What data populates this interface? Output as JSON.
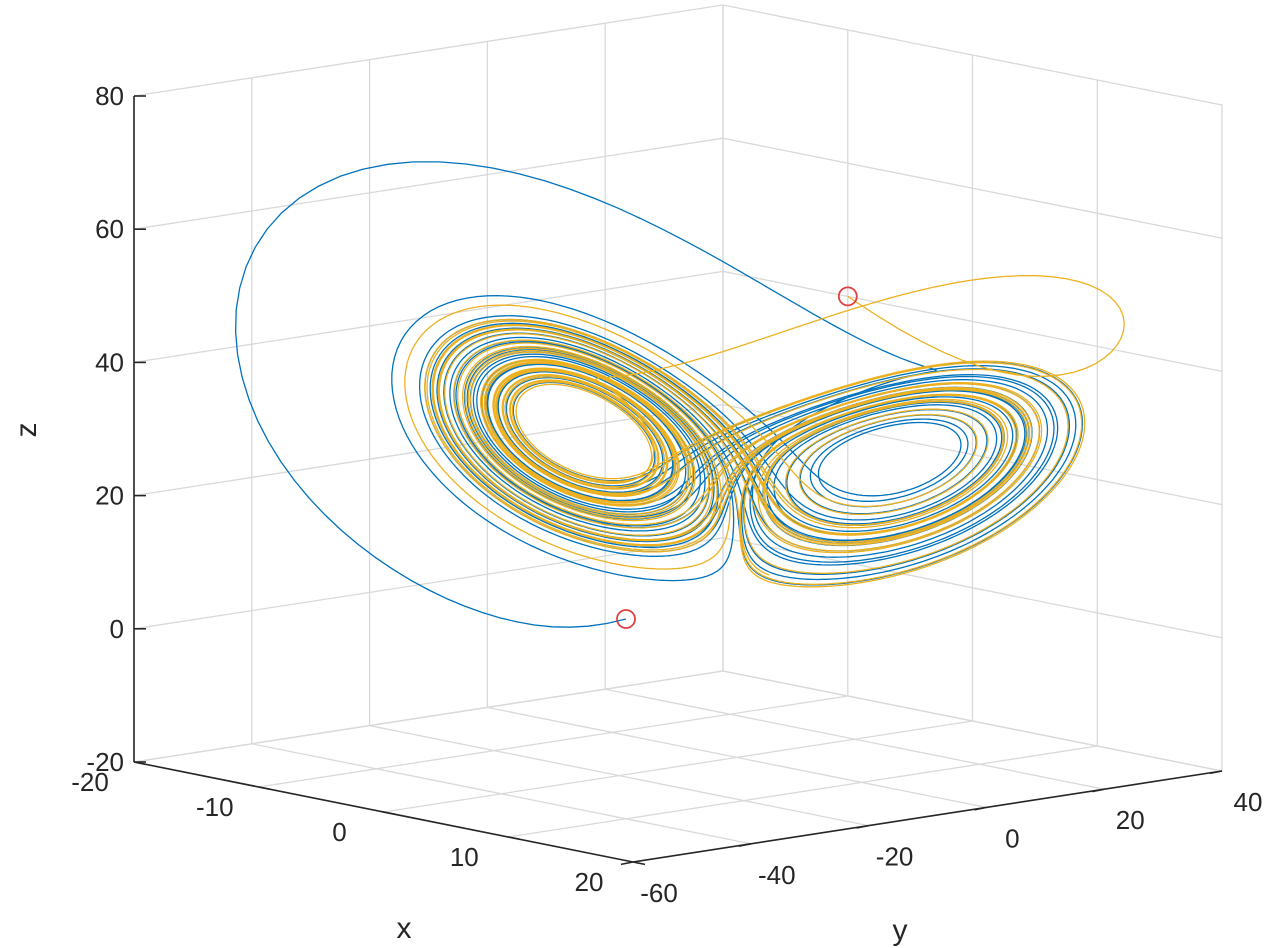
{
  "chart_data": {
    "type": "line",
    "projection": "3d",
    "title": "",
    "xlabel": "x",
    "ylabel": "y",
    "zlabel": "z",
    "xlim": [
      -20,
      20
    ],
    "ylim": [
      -60,
      40
    ],
    "zlim": [
      -20,
      80
    ],
    "xticks": [
      "-20",
      "-10",
      "0",
      "10",
      "20"
    ],
    "yticks": [
      "-60",
      "-40",
      "-20",
      "0",
      "20",
      "40"
    ],
    "zticks": [
      "-20",
      "0",
      "20",
      "40",
      "60",
      "80"
    ],
    "grid": true,
    "legend": "none",
    "colors": {
      "blue_series": "#0072bd",
      "yellow_series": "#edb120",
      "start_marker": "#e04040"
    },
    "series": [
      {
        "color": "#0072bd",
        "start": [
          10,
          -40,
          10
        ],
        "system": "Lorenz",
        "params": {
          "sigma": 10,
          "rho": 28,
          "beta": 2.6667
        }
      },
      {
        "color": "#edb120",
        "start": [
          -10,
          40,
          40
        ],
        "system": "Lorenz",
        "params": {
          "sigma": 10,
          "rho": 28,
          "beta": 2.6667
        }
      }
    ],
    "markers": [
      {
        "shape": "circle",
        "at": [
          -10,
          40,
          40
        ],
        "color": "#e04040"
      },
      {
        "shape": "circle",
        "at": [
          10,
          -40,
          10
        ],
        "color": "#e04040"
      }
    ]
  }
}
